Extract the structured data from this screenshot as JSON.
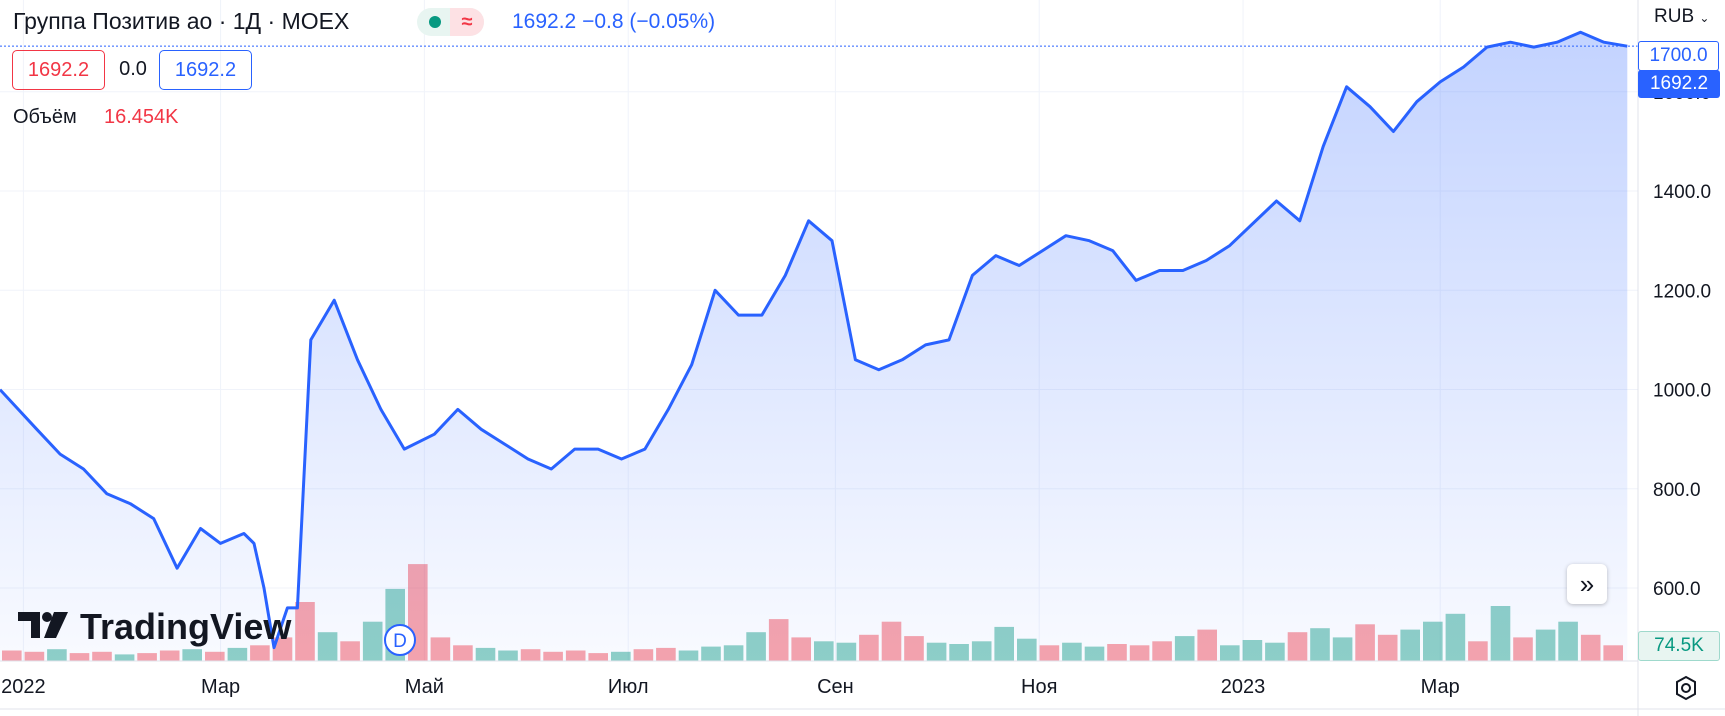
{
  "header": {
    "title": "Группа Позитив ао · 1Д · MOEX",
    "badge_wave": "≈",
    "price_info": "1692.2  −0.8 (−0.05%)",
    "box_red": "1692.2",
    "box_mid": "0.0",
    "box_blue": "1692.2",
    "volume_label": "Объём",
    "volume_value": "16.454K"
  },
  "axis": {
    "currency": "RUB",
    "price_tag_outline": "1700.0",
    "price_tag_current": "1692.2",
    "volume_tag": "74.5K"
  },
  "logo_text": "TradingView",
  "dividend_badge": "D",
  "scroll_icon": "double-chevron-right-icon",
  "settings_icon": "gear-icon",
  "colors": {
    "line": "#2962ff",
    "up": "#089981",
    "down": "#f23645",
    "grid": "#f0f3fa"
  },
  "chart_data": {
    "type": "area",
    "y_ticks": [
      "600.0",
      "800.0",
      "1000.0",
      "1200.0",
      "1400.0",
      "1600.0"
    ],
    "y_tick_values": [
      600,
      800,
      1000,
      1200,
      1400,
      1600
    ],
    "ylim": [
      453,
      1785
    ],
    "x_ticks": [
      "2022",
      "Мар",
      "Май",
      "Июл",
      "Сен",
      "Ноя",
      "2023",
      "Мар"
    ],
    "x_tick_dates": [
      "2022-01-01",
      "2022-03-01",
      "2022-05-01",
      "2022-07-01",
      "2022-09-01",
      "2022-11-01",
      "2023-01-01",
      "2023-03-01"
    ],
    "x_range": [
      "2021-12-25",
      "2023-04-28"
    ],
    "series": [
      {
        "x": [
          "2021-12-25",
          "2022-01-05",
          "2022-01-12",
          "2022-01-19",
          "2022-01-26",
          "2022-02-02",
          "2022-02-09",
          "2022-02-16",
          "2022-02-23",
          "2022-03-01",
          "2022-03-08",
          "2022-03-11",
          "2022-03-14",
          "2022-03-17",
          "2022-03-21",
          "2022-03-24",
          "2022-03-28",
          "2022-04-04",
          "2022-04-11",
          "2022-04-18",
          "2022-04-25",
          "2022-05-04",
          "2022-05-11",
          "2022-05-18",
          "2022-05-25",
          "2022-06-01",
          "2022-06-08",
          "2022-06-15",
          "2022-06-22",
          "2022-06-29",
          "2022-07-06",
          "2022-07-13",
          "2022-07-20",
          "2022-07-27",
          "2022-08-03",
          "2022-08-10",
          "2022-08-17",
          "2022-08-24",
          "2022-08-31",
          "2022-09-07",
          "2022-09-14",
          "2022-09-21",
          "2022-09-28",
          "2022-10-05",
          "2022-10-12",
          "2022-10-19",
          "2022-10-26",
          "2022-11-02",
          "2022-11-09",
          "2022-11-16",
          "2022-11-23",
          "2022-11-30",
          "2022-12-07",
          "2022-12-14",
          "2022-12-21",
          "2022-12-28",
          "2023-01-11",
          "2023-01-18",
          "2023-01-25",
          "2023-02-01",
          "2023-02-08",
          "2023-02-15",
          "2023-02-22",
          "2023-03-01",
          "2023-03-08",
          "2023-03-15",
          "2023-03-22",
          "2023-03-29",
          "2023-04-05",
          "2023-04-12",
          "2023-04-19",
          "2023-04-26"
        ],
        "values": [
          1000,
          920,
          870,
          840,
          790,
          770,
          740,
          640,
          720,
          690,
          710,
          690,
          600,
          480,
          560,
          560,
          1100,
          1180,
          1060,
          960,
          880,
          910,
          960,
          920,
          890,
          860,
          840,
          880,
          880,
          860,
          880,
          960,
          1050,
          1200,
          1150,
          1150,
          1230,
          1340,
          1300,
          1060,
          1040,
          1060,
          1090,
          1100,
          1230,
          1270,
          1250,
          1280,
          1310,
          1300,
          1280,
          1220,
          1240,
          1240,
          1260,
          1290,
          1380,
          1340,
          1490,
          1610,
          1570,
          1520,
          1580,
          1620,
          1650,
          1690,
          1700,
          1690,
          1700,
          1720,
          1700,
          1692
        ]
      }
    ],
    "volume_axis_max": 74.5,
    "volume": [
      8,
      7,
      9,
      6,
      7,
      5,
      6,
      8,
      9,
      7,
      10,
      12,
      18,
      45,
      22,
      15,
      30,
      55,
      74,
      18,
      12,
      10,
      8,
      9,
      7,
      8,
      6,
      7,
      9,
      10,
      8,
      11,
      12,
      22,
      32,
      18,
      15,
      14,
      20,
      30,
      19,
      14,
      13,
      15,
      26,
      17,
      12,
      14,
      11,
      13,
      12,
      15,
      19,
      24,
      12,
      16,
      14,
      22,
      25,
      18,
      28,
      20,
      24,
      30,
      36,
      15,
      42,
      18,
      24,
      30,
      20,
      12
    ],
    "volume_up": [
      false,
      false,
      true,
      false,
      false,
      true,
      false,
      false,
      true,
      false,
      true,
      false,
      false,
      false,
      true,
      false,
      true,
      true,
      false,
      false,
      false,
      true,
      true,
      false,
      false,
      false,
      false,
      true,
      false,
      false,
      true,
      true,
      true,
      true,
      false,
      false,
      true,
      true,
      false,
      false,
      false,
      true,
      true,
      true,
      true,
      true,
      false,
      true,
      true,
      false,
      false,
      false,
      true,
      false,
      true,
      true,
      true,
      false,
      true,
      true,
      false,
      false,
      true,
      true,
      true,
      false,
      true,
      false,
      true,
      true,
      false,
      false
    ]
  }
}
